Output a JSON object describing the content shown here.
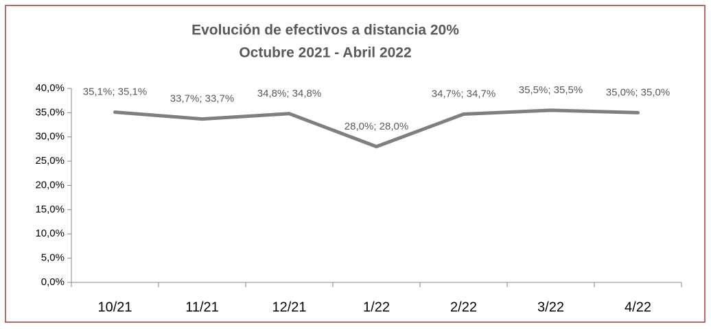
{
  "chart_data": {
    "type": "line",
    "title": "Evolución de efectivos a distancia 20%",
    "subtitle": "Octubre 2021 - Abril 2022",
    "categories": [
      "10/21",
      "11/21",
      "12/21",
      "1/22",
      "2/22",
      "3/22",
      "4/22"
    ],
    "series": [
      {
        "name": null,
        "color": "#7f7f7f",
        "values": [
          35.1,
          33.7,
          34.8,
          28.0,
          34.7,
          35.5,
          35.0
        ],
        "value_labels": [
          "35,1%; 35,1%",
          "33,7%; 33,7%",
          "34,8%; 34,8%",
          "28,0%; 28,0%",
          "34,7%; 34,7%",
          "35,5%; 35,5%",
          "35,0%; 35,0%"
        ]
      }
    ],
    "ylim": [
      0,
      40
    ],
    "yticks": [
      {
        "value": 0,
        "label": "0,0%"
      },
      {
        "value": 5,
        "label": "5,0%"
      },
      {
        "value": 10,
        "label": "10,0%"
      },
      {
        "value": 15,
        "label": "15,0%"
      },
      {
        "value": 20,
        "label": "20,0%"
      },
      {
        "value": 25,
        "label": "25,0%"
      },
      {
        "value": 30,
        "label": "30,0%"
      },
      {
        "value": 35,
        "label": "35,0%"
      },
      {
        "value": 40,
        "label": "40,0%"
      }
    ]
  }
}
